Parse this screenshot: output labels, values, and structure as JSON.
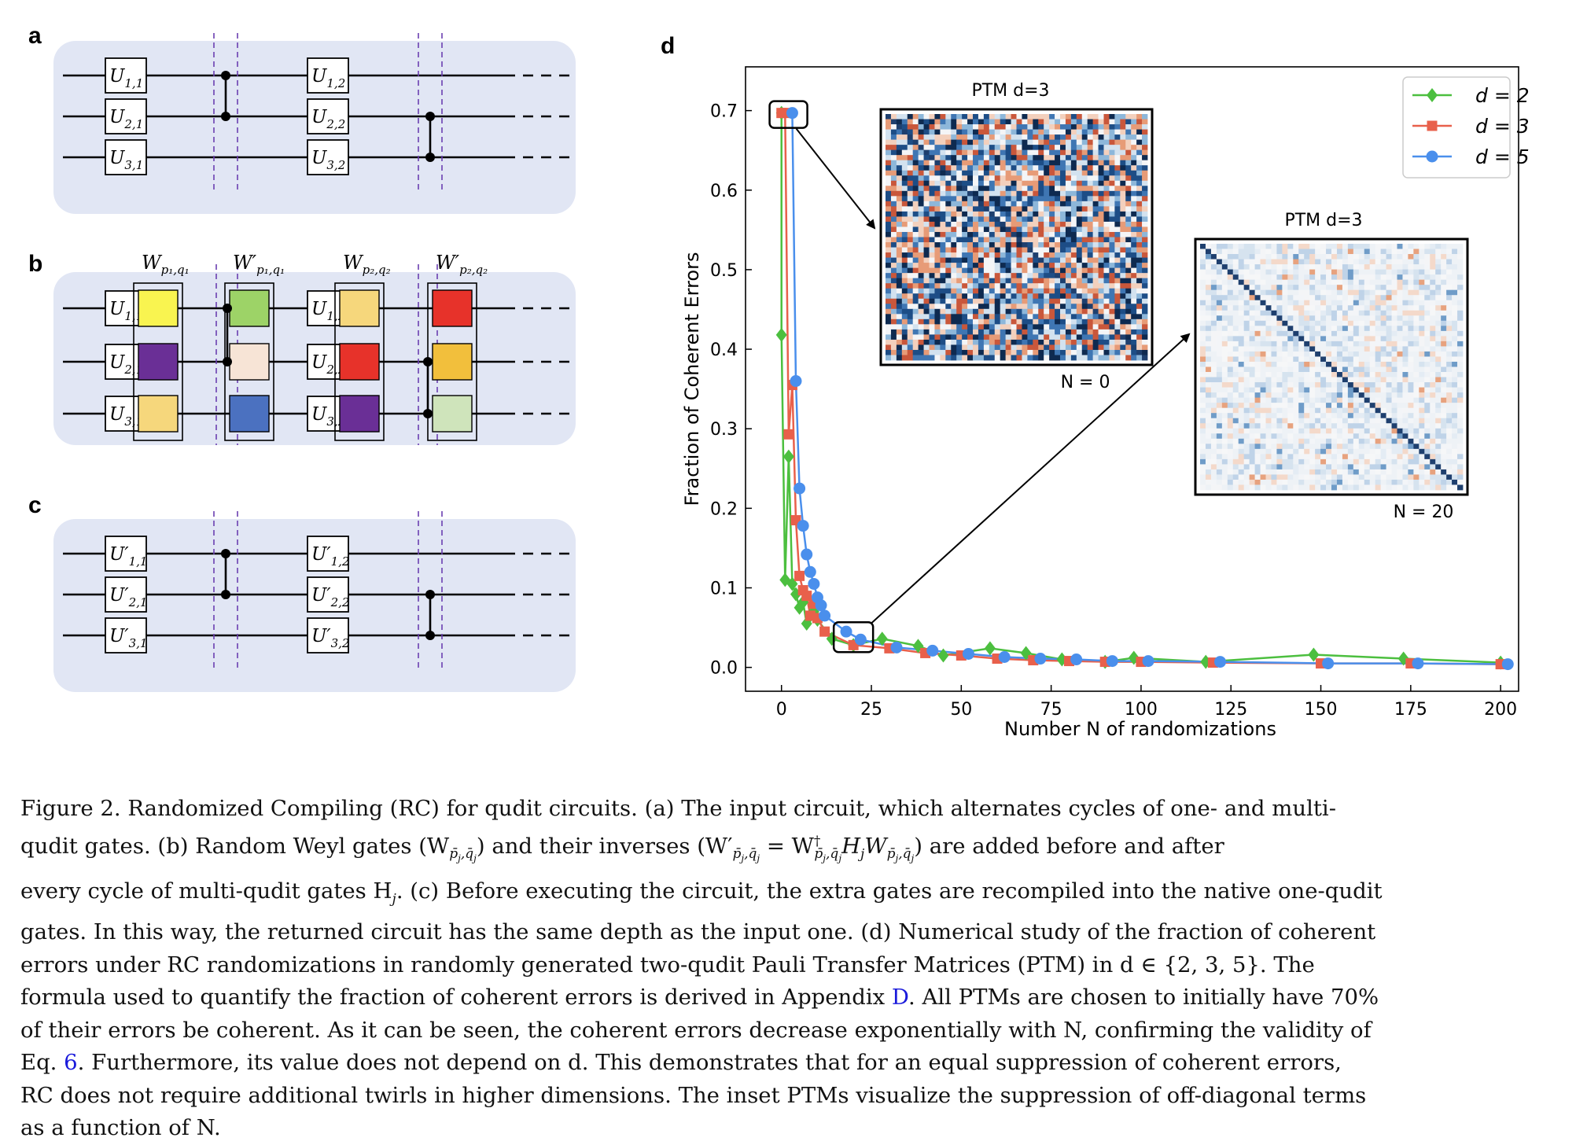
{
  "panels": {
    "a": "a",
    "b": "b",
    "c": "c",
    "d": "d"
  },
  "circuit_a": {
    "gates": [
      {
        "base": "U",
        "sub": "1,1"
      },
      {
        "base": "U",
        "sub": "2,1"
      },
      {
        "base": "U",
        "sub": "3,1"
      },
      {
        "base": "U",
        "sub": "1,2"
      },
      {
        "base": "U",
        "sub": "2,2"
      },
      {
        "base": "U",
        "sub": "3,2"
      }
    ]
  },
  "circuit_b": {
    "weyl_labels": [
      {
        "base": "W",
        "sub": "p₁,q₁"
      },
      {
        "base": "W′",
        "sub": "p₁,q₁"
      },
      {
        "base": "W",
        "sub": "p₂,q₂"
      },
      {
        "base": "W′",
        "sub": "p₂,q₂"
      }
    ],
    "weyl_colors": [
      [
        "#f9f450",
        "#6a2f96",
        "#f6d77c"
      ],
      [
        "#9dd367",
        "#f7e4d6",
        "#4b71c0"
      ],
      [
        "#f6d77c",
        "#e7322a",
        "#6a2f96"
      ],
      [
        "#e7322a",
        "#f2bf3c",
        "#cfe4bb"
      ]
    ]
  },
  "circuit_c": {
    "gates": [
      {
        "base": "U′",
        "sub": "1,1"
      },
      {
        "base": "U′",
        "sub": "2,1"
      },
      {
        "base": "U′",
        "sub": "3,1"
      },
      {
        "base": "U′",
        "sub": "1,2"
      },
      {
        "base": "U′",
        "sub": "2,2"
      },
      {
        "base": "U′",
        "sub": "3,2"
      }
    ]
  },
  "chart_data": {
    "type": "line",
    "xlabel": "Number N of randomizations",
    "ylabel": "Fraction of Coherent Errors",
    "xlim": [
      -10,
      205
    ],
    "ylim": [
      -0.03,
      0.755
    ],
    "xticks": [
      0,
      25,
      50,
      75,
      100,
      125,
      150,
      175,
      200
    ],
    "yticks": [
      0.0,
      0.1,
      0.2,
      0.3,
      0.4,
      0.5,
      0.6,
      0.7
    ],
    "grid": false,
    "legend_position": "top-right",
    "series": [
      {
        "name": "d = 2",
        "color": "#4cbf3f",
        "marker": "diamond",
        "x": [
          0,
          0,
          1,
          2,
          3,
          4,
          5,
          6,
          7,
          8,
          9,
          10,
          14,
          20,
          28,
          38,
          45,
          58,
          68,
          78,
          90,
          98,
          118,
          148,
          173,
          200
        ],
        "y": [
          0.697,
          0.418,
          0.11,
          0.265,
          0.105,
          0.092,
          0.075,
          0.082,
          0.055,
          0.065,
          0.07,
          0.06,
          0.036,
          0.028,
          0.036,
          0.027,
          0.015,
          0.024,
          0.018,
          0.01,
          0.007,
          0.012,
          0.007,
          0.016,
          0.011,
          0.006
        ]
      },
      {
        "name": "d = 3",
        "color": "#e8604b",
        "marker": "square",
        "x": [
          0,
          1,
          2,
          3,
          4,
          5,
          6,
          7,
          8,
          9,
          10,
          12,
          20,
          30,
          40,
          50,
          60,
          70,
          80,
          90,
          100,
          120,
          150,
          175,
          200
        ],
        "y": [
          0.697,
          0.697,
          0.293,
          0.355,
          0.185,
          0.115,
          0.097,
          0.09,
          0.065,
          0.08,
          0.062,
          0.045,
          0.028,
          0.024,
          0.018,
          0.015,
          0.011,
          0.009,
          0.008,
          0.007,
          0.007,
          0.006,
          0.005,
          0.005,
          0.004
        ]
      },
      {
        "name": "d = 5",
        "color": "#4a8fec",
        "marker": "circle",
        "x": [
          3,
          4,
          5,
          6,
          7,
          8,
          9,
          10,
          11,
          12,
          18,
          22,
          32,
          42,
          52,
          62,
          72,
          82,
          92,
          102,
          122,
          152,
          177,
          202
        ],
        "y": [
          0.697,
          0.36,
          0.225,
          0.178,
          0.142,
          0.12,
          0.105,
          0.088,
          0.078,
          0.065,
          0.045,
          0.035,
          0.025,
          0.021,
          0.017,
          0.013,
          0.011,
          0.01,
          0.008,
          0.008,
          0.007,
          0.005,
          0.005,
          0.004
        ]
      }
    ],
    "insets": [
      {
        "title": "PTM d=3",
        "label": "N = 0"
      },
      {
        "title": "PTM d=3",
        "label": "N = 20"
      }
    ]
  },
  "caption": {
    "lines": [
      "Figure 2. Randomized Compiling (RC) for qudit circuits. (a) The input circuit, which alternates cycles of one- and multi-",
      "qudit gates.  (b) Random Weyl gates (W",
      "every cycle of multi-qudit gates H",
      "gates. In this way, the returned circuit has the same depth as the input one. (d) Numerical study of the fraction of coherent",
      "errors under RC randomizations in randomly generated two-qudit Pauli Transfer Matrices (PTM) in d ∈ {2, 3, 5}.  The",
      "formula used to quantify the fraction of coherent errors is derived in Appendix ",
      "of their errors be coherent. As it can be seen, the coherent errors decrease exponentially with N, confirming the validity of",
      "Eq. ",
      "RC does not require additional twirls in higher dimensions. The inset PTMs visualize the suppression of off-diagonal terms",
      "as a function of N."
    ],
    "line2_rest": ") and their inverses (W′",
    "line2_eq": " = W",
    "line2_tail": ") are added before and after",
    "line3_rest": ". (c) Before executing the circuit, the extra gates are recompiled into the native one-qudit",
    "appendix_link": "D",
    "line6_tail": ". All PTMs are chosen to initially have 70%",
    "eq_link": "6",
    "line8_tail": ".  Furthermore, its value does not depend on d.  This demonstrates that for an equal suppression of coherent errors,"
  }
}
